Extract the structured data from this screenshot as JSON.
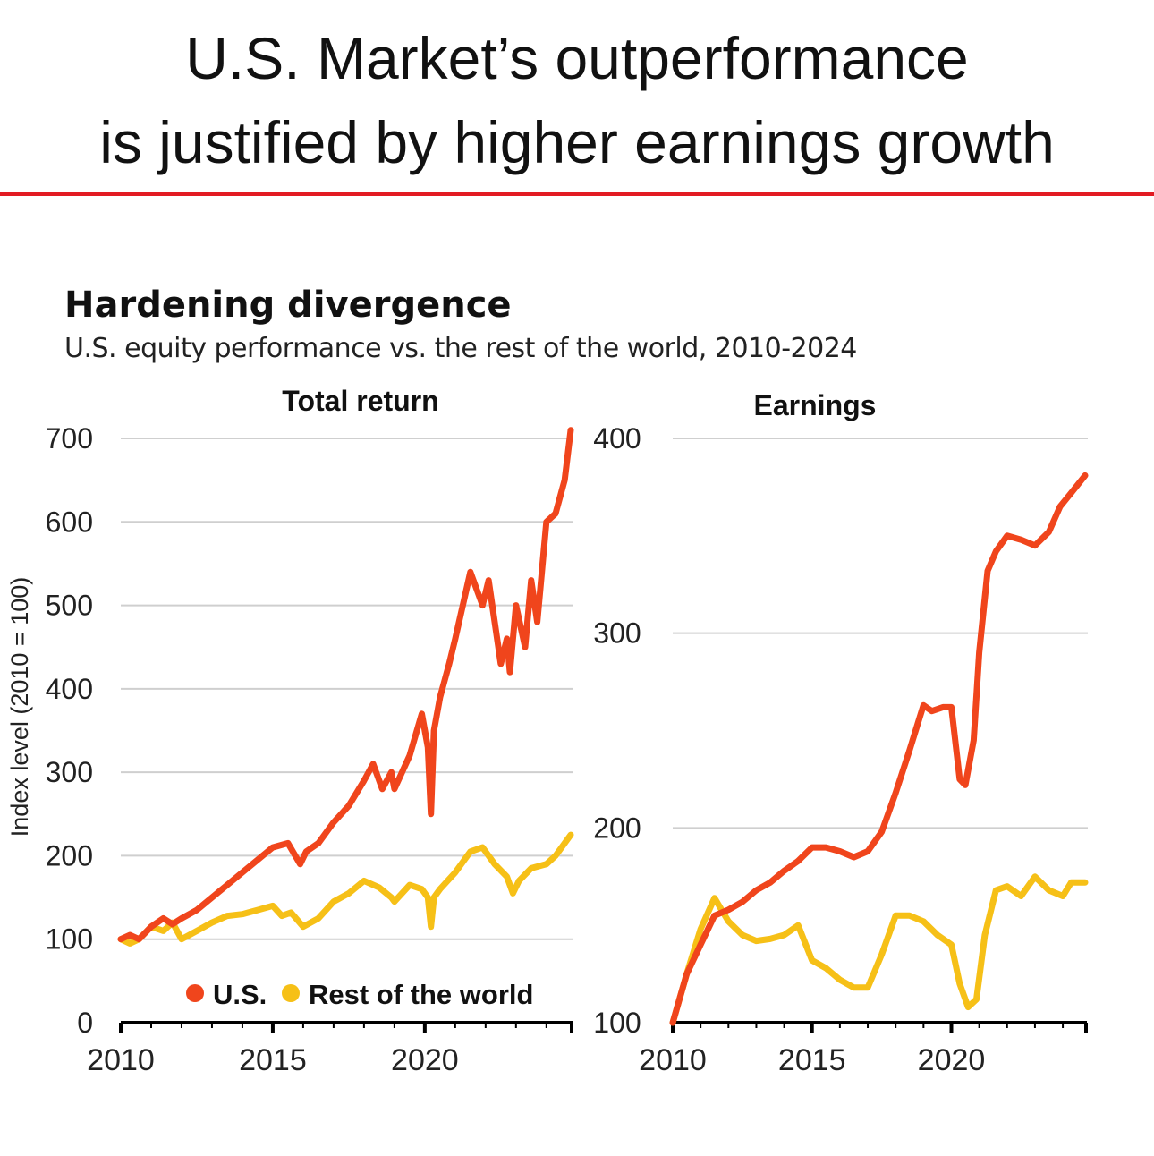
{
  "header": {
    "line1": "U.S. Market’s outperformance",
    "line2": "is justified by higher earnings growth"
  },
  "colors": {
    "us": "#f0451c",
    "rest_of_world": "#f6c017",
    "rule": "#e21b23",
    "grid": "#cfcfcf"
  },
  "chart_data": [
    {
      "type": "line",
      "title": "Hardening divergence",
      "subtitle": "U.S. equity performance vs. the rest of the world, 2010-2024",
      "panel_title": "Total return",
      "ylabel": "Index level (2010 = 100)",
      "ylim": [
        0,
        700
      ],
      "yticks": [
        "0",
        "100",
        "200",
        "300",
        "400",
        "500",
        "600",
        "700"
      ],
      "xlim": [
        2010,
        2024.8
      ],
      "xticks": [
        "2010",
        "2015",
        "2020"
      ],
      "grid": true,
      "legend": {
        "position": "bottom-right",
        "entries": [
          "U.S.",
          "Rest of the world"
        ]
      },
      "series": [
        {
          "name": "U.S.",
          "x": [
            2010,
            2010.3,
            2010.6,
            2011,
            2011.4,
            2011.7,
            2012,
            2012.5,
            2013,
            2013.5,
            2014,
            2014.5,
            2015,
            2015.5,
            2015.9,
            2016.1,
            2016.5,
            2017,
            2017.5,
            2018,
            2018.3,
            2018.6,
            2018.9,
            2019,
            2019.5,
            2019.9,
            2020.1,
            2020.2,
            2020.3,
            2020.5,
            2020.8,
            2021,
            2021.5,
            2021.9,
            2022.1,
            2022.3,
            2022.5,
            2022.7,
            2022.8,
            2023,
            2023.3,
            2023.5,
            2023.7,
            2023.9,
            2024,
            2024.3,
            2024.6,
            2024.8
          ],
          "y": [
            100,
            105,
            100,
            115,
            125,
            118,
            125,
            135,
            150,
            165,
            180,
            195,
            210,
            215,
            190,
            205,
            215,
            240,
            260,
            290,
            310,
            280,
            300,
            280,
            320,
            370,
            330,
            250,
            350,
            390,
            430,
            460,
            540,
            500,
            530,
            480,
            430,
            460,
            420,
            500,
            450,
            530,
            480,
            560,
            600,
            610,
            650,
            710
          ]
        },
        {
          "name": "Rest of the world",
          "x": [
            2010,
            2010.3,
            2010.6,
            2011,
            2011.4,
            2011.7,
            2012,
            2012.5,
            2013,
            2013.5,
            2014,
            2014.5,
            2015,
            2015.3,
            2015.6,
            2016,
            2016.5,
            2017,
            2017.5,
            2018,
            2018.5,
            2018.9,
            2019,
            2019.5,
            2019.9,
            2020.1,
            2020.2,
            2020.3,
            2020.5,
            2021,
            2021.5,
            2021.9,
            2022.3,
            2022.7,
            2022.9,
            2023.1,
            2023.5,
            2024,
            2024.3,
            2024.6,
            2024.8
          ],
          "y": [
            100,
            95,
            100,
            115,
            110,
            120,
            100,
            110,
            120,
            128,
            130,
            135,
            140,
            128,
            132,
            115,
            125,
            145,
            155,
            170,
            162,
            150,
            145,
            165,
            160,
            150,
            115,
            150,
            160,
            180,
            205,
            210,
            190,
            175,
            155,
            170,
            185,
            190,
            200,
            215,
            225
          ]
        }
      ]
    },
    {
      "type": "line",
      "panel_title": "Earnings",
      "ylim": [
        100,
        400
      ],
      "yticks": [
        "100",
        "200",
        "300",
        "400"
      ],
      "xlim": [
        2010,
        2024.8
      ],
      "xticks": [
        "2010",
        "2015",
        "2020"
      ],
      "grid": true,
      "series": [
        {
          "name": "U.S.",
          "x": [
            2010,
            2010.5,
            2011,
            2011.5,
            2012,
            2012.5,
            2013,
            2013.5,
            2014,
            2014.5,
            2015,
            2015.5,
            2016,
            2016.5,
            2017,
            2017.5,
            2018,
            2018.5,
            2019,
            2019.3,
            2019.7,
            2020,
            2020.3,
            2020.5,
            2020.8,
            2021,
            2021.3,
            2021.6,
            2022,
            2022.5,
            2023,
            2023.5,
            2023.9,
            2024.3,
            2024.8
          ],
          "y": [
            100,
            125,
            140,
            155,
            158,
            162,
            168,
            172,
            178,
            183,
            190,
            190,
            188,
            185,
            188,
            198,
            218,
            240,
            263,
            260,
            262,
            262,
            225,
            222,
            245,
            290,
            332,
            342,
            350,
            348,
            345,
            352,
            365,
            372,
            381
          ]
        },
        {
          "name": "Rest of the world",
          "x": [
            2010,
            2010.5,
            2011,
            2011.5,
            2012,
            2012.5,
            2013,
            2013.5,
            2014,
            2014.5,
            2015,
            2015.5,
            2016,
            2016.5,
            2017,
            2017.5,
            2018,
            2018.5,
            2019,
            2019.5,
            2020,
            2020.3,
            2020.6,
            2020.9,
            2021.2,
            2021.6,
            2022,
            2022.5,
            2023,
            2023.5,
            2024,
            2024.3,
            2024.8
          ],
          "y": [
            100,
            125,
            148,
            164,
            152,
            145,
            142,
            143,
            145,
            150,
            132,
            128,
            122,
            118,
            118,
            135,
            155,
            155,
            152,
            145,
            140,
            120,
            108,
            112,
            145,
            168,
            170,
            165,
            175,
            168,
            165,
            172,
            172
          ]
        }
      ]
    }
  ]
}
